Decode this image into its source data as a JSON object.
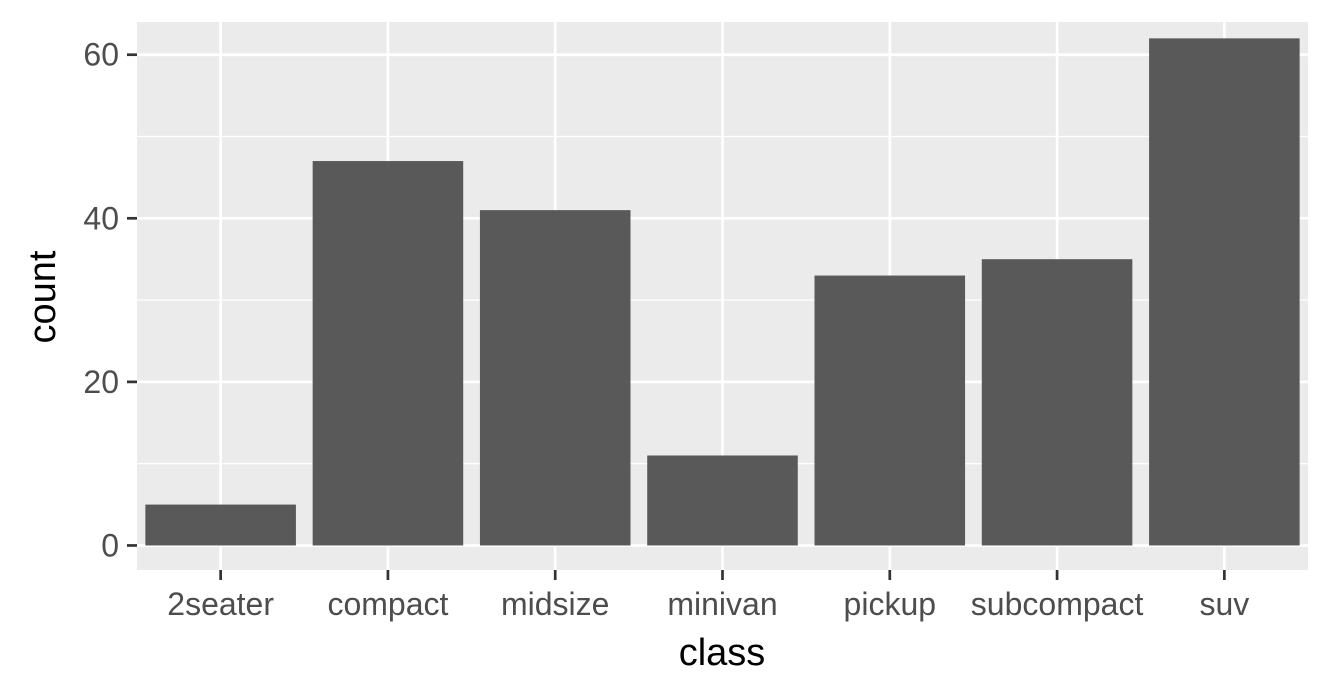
{
  "chart_data": {
    "type": "bar",
    "categories": [
      "2seater",
      "compact",
      "midsize",
      "minivan",
      "pickup",
      "subcompact",
      "suv"
    ],
    "values": [
      5,
      47,
      41,
      11,
      33,
      35,
      62
    ],
    "title": "",
    "xlabel": "class",
    "ylabel": "count",
    "ylim": [
      -3,
      64
    ],
    "yticks": [
      0,
      20,
      40,
      60
    ],
    "grid": true,
    "colors": {
      "panel": "#ebebeb",
      "grid": "#ffffff",
      "bar": "#595959",
      "tick": "#333333"
    }
  }
}
